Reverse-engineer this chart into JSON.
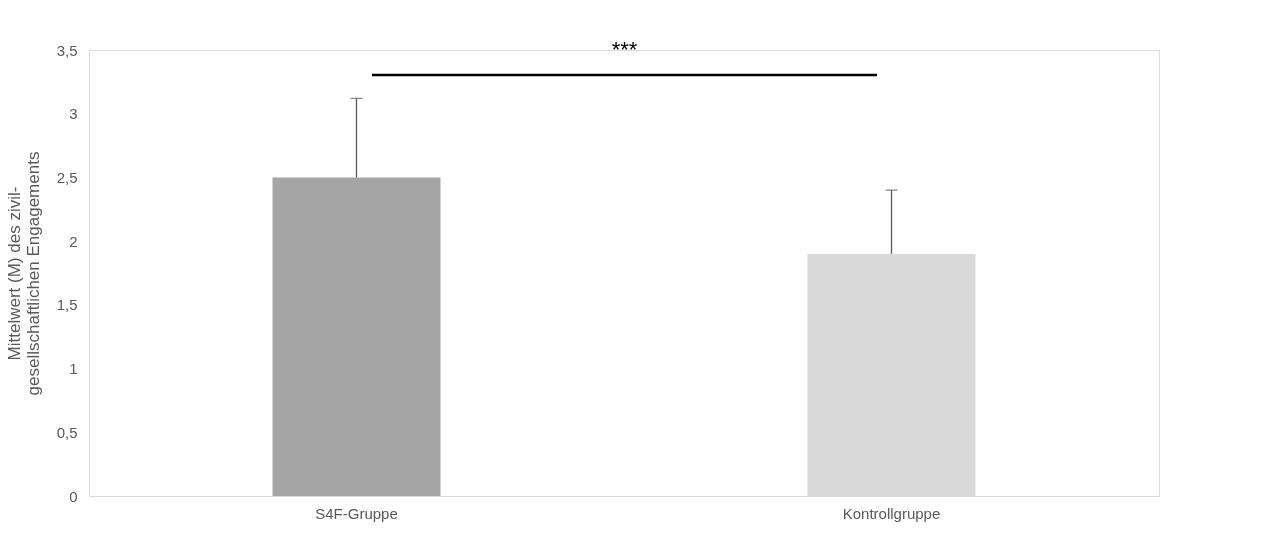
{
  "chart_data": {
    "type": "bar",
    "ylabel": "Mittelwert (M) des zivil-\ngesellschaftlichen Engagements",
    "categories": [
      "S4F-Gruppe",
      "Kontrollgruppe"
    ],
    "values": [
      2.5,
      1.9
    ],
    "colors": [
      "#a5a5a5",
      "#d9d9d9"
    ],
    "errors": [
      [
        2.5,
        3.12
      ],
      [
        1.9,
        2.4
      ]
    ],
    "ylim": [
      0,
      3.5
    ],
    "yticks": [
      {
        "value": 0,
        "label": "0"
      },
      {
        "value": 0.5,
        "label": "0,5"
      },
      {
        "value": 1,
        "label": "1"
      },
      {
        "value": 1.5,
        "label": "1,5"
      },
      {
        "value": 2,
        "label": "2"
      },
      {
        "value": 2.5,
        "label": "2,5"
      },
      {
        "value": 3,
        "label": "3"
      },
      {
        "value": 3.5,
        "label": "3,5"
      }
    ],
    "annotations": [
      "***"
    ],
    "grid": false,
    "legend": false
  }
}
